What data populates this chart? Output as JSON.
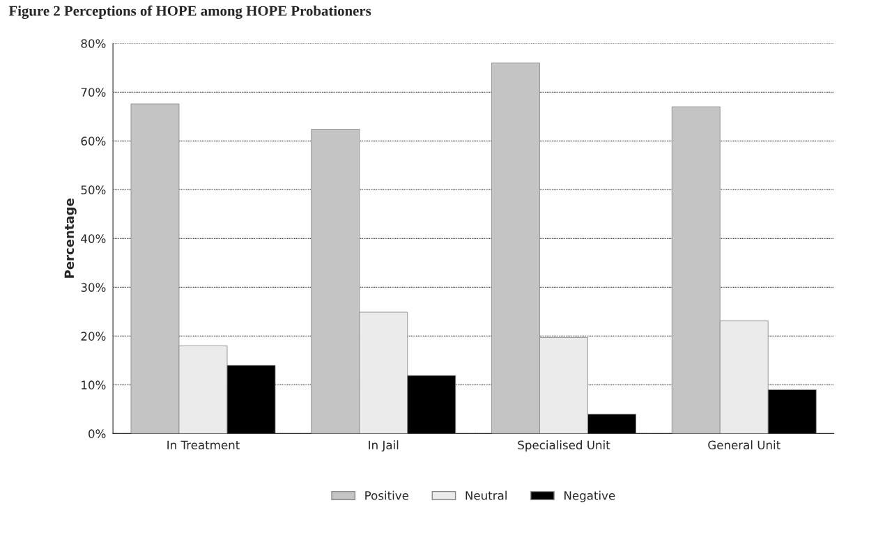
{
  "chart_data": {
    "type": "bar",
    "title": "Figure 2 Perceptions of HOPE among HOPE Probationers",
    "ylabel": "Percentage",
    "categories": [
      "In Treatment",
      "In Jail",
      "Specialised Unit",
      "General Unit"
    ],
    "series": [
      {
        "name": "Positive",
        "color": "#c4c4c4",
        "values": [
          67.6,
          62.4,
          76,
          67
        ]
      },
      {
        "name": "Neutral",
        "color": "#ebebeb",
        "values": [
          18,
          24.9,
          19.7,
          23.1
        ]
      },
      {
        "name": "Negative",
        "color": "#000000",
        "values": [
          14,
          11.9,
          4,
          9
        ]
      }
    ],
    "ylim": [
      0,
      80
    ],
    "yticks": [
      {
        "value": 0,
        "label": "0%"
      },
      {
        "value": 10,
        "label": "10%"
      },
      {
        "value": 20,
        "label": "20%"
      },
      {
        "value": 30,
        "label": "30%"
      },
      {
        "value": 40,
        "label": "40%"
      },
      {
        "value": 50,
        "label": "50%"
      },
      {
        "value": 60,
        "label": "60%"
      },
      {
        "value": 70,
        "label": "70%"
      },
      {
        "value": 80,
        "label": "80%"
      }
    ],
    "grid": "y",
    "legend": "bottom"
  }
}
